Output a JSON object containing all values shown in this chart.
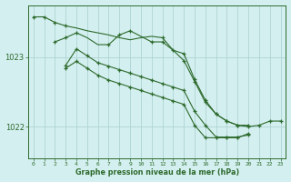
{
  "title": "Graphe pression niveau de la mer (hPa)",
  "line_color": "#2d6a2d",
  "bg_color": "#d4efef",
  "grid_color": "#aed4d4",
  "axis_color": "#2d6a2d",
  "xlim": [
    -0.5,
    23.5
  ],
  "ylim": [
    1021.55,
    1023.75
  ],
  "yticks": [
    1022,
    1023
  ],
  "xticks": [
    0,
    1,
    2,
    3,
    4,
    5,
    6,
    7,
    8,
    9,
    10,
    11,
    12,
    13,
    14,
    15,
    16,
    17,
    18,
    19,
    20,
    21,
    22,
    23
  ],
  "series1_x": [
    0,
    1,
    2,
    3,
    4,
    5,
    6,
    7,
    8,
    9,
    10,
    11,
    12,
    13,
    14,
    15,
    16,
    17,
    18,
    19,
    20,
    21,
    22,
    23
  ],
  "series1_y": [
    1023.58,
    1023.58,
    1023.5,
    1023.45,
    1023.42,
    1023.38,
    1023.35,
    1023.32,
    1023.28,
    1023.25,
    1023.28,
    1023.3,
    1023.28,
    1023.1,
    1022.95,
    1022.65,
    1022.35,
    1022.18,
    1022.08,
    1022.02,
    1022.0,
    1022.02,
    1022.08,
    1022.08
  ],
  "series1_markers_x": [
    0,
    1,
    2,
    3,
    12,
    14,
    15,
    16,
    17,
    18,
    19,
    20,
    21,
    22,
    23
  ],
  "series1_markers_y": [
    1023.58,
    1023.58,
    1023.5,
    1023.45,
    1023.28,
    1022.95,
    1022.65,
    1022.35,
    1022.18,
    1022.08,
    1022.02,
    1022.0,
    1022.02,
    1022.08,
    1022.08
  ],
  "series2_x": [
    2,
    3,
    4,
    5,
    6,
    7,
    8,
    9,
    10,
    11,
    12,
    13,
    14,
    15,
    16,
    17,
    18,
    19,
    20
  ],
  "series2_y": [
    1023.22,
    1023.28,
    1023.35,
    1023.28,
    1023.18,
    1023.18,
    1023.32,
    1023.38,
    1023.3,
    1023.22,
    1023.22,
    1023.1,
    1023.05,
    1022.68,
    1022.38,
    1022.18,
    1022.08,
    1022.02,
    1022.02
  ],
  "series2_markers_x": [
    2,
    3,
    4,
    7,
    8,
    9,
    11,
    12,
    13,
    14,
    15,
    16,
    17,
    18,
    19,
    20
  ],
  "series2_markers_y": [
    1023.22,
    1023.28,
    1023.35,
    1023.18,
    1023.32,
    1023.38,
    1023.22,
    1023.22,
    1023.1,
    1023.05,
    1022.68,
    1022.38,
    1022.18,
    1022.08,
    1022.02,
    1022.02
  ],
  "series3_x": [
    3,
    4,
    5,
    6,
    7,
    8,
    9,
    10,
    11,
    12,
    13,
    14,
    15,
    16,
    17,
    18,
    19,
    20
  ],
  "series3_y": [
    1022.88,
    1023.12,
    1023.02,
    1022.92,
    1022.87,
    1022.82,
    1022.77,
    1022.72,
    1022.67,
    1022.62,
    1022.57,
    1022.52,
    1022.22,
    1022.02,
    1021.85,
    1021.85,
    1021.85,
    1021.88
  ],
  "series3_markers_x": [
    3,
    4,
    5,
    6,
    7,
    8,
    9,
    10,
    11,
    12,
    13,
    14,
    15,
    16,
    17,
    18,
    19,
    20
  ],
  "series3_markers_y": [
    1022.88,
    1023.12,
    1023.02,
    1022.92,
    1022.87,
    1022.82,
    1022.77,
    1022.72,
    1022.67,
    1022.62,
    1022.57,
    1022.52,
    1022.22,
    1022.02,
    1021.85,
    1021.85,
    1021.85,
    1021.88
  ],
  "series4_x": [
    3,
    4,
    5,
    6,
    7,
    8,
    9,
    10,
    11,
    12,
    13,
    14,
    15,
    16,
    17,
    18,
    19,
    20
  ],
  "series4_y": [
    1022.84,
    1022.94,
    1022.84,
    1022.74,
    1022.67,
    1022.62,
    1022.57,
    1022.52,
    1022.47,
    1022.42,
    1022.37,
    1022.32,
    1022.02,
    1021.84,
    1021.84,
    1021.84,
    1021.84,
    1021.9
  ],
  "series4_markers_x": [
    3,
    4,
    5,
    6,
    7,
    8,
    9,
    10,
    11,
    12,
    13,
    14,
    15,
    16,
    17,
    18,
    19,
    20
  ],
  "series4_markers_y": [
    1022.84,
    1022.94,
    1022.84,
    1022.74,
    1022.67,
    1022.62,
    1022.57,
    1022.52,
    1022.47,
    1022.42,
    1022.37,
    1022.32,
    1022.02,
    1021.84,
    1021.84,
    1021.84,
    1021.84,
    1021.9
  ]
}
